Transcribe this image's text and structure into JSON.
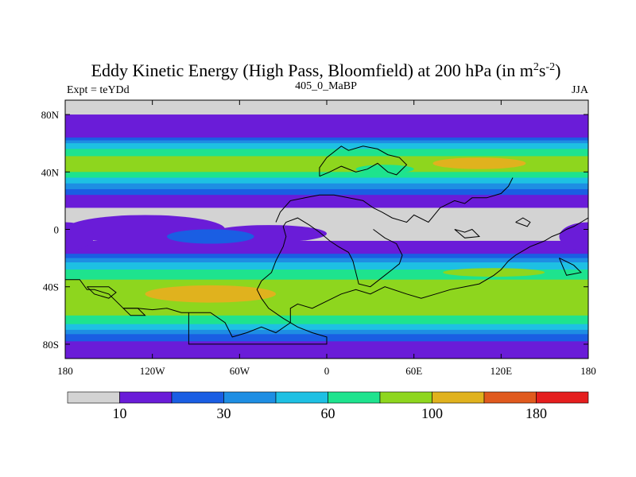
{
  "chart_data": {
    "type": "heatmap",
    "title_main": "Eddy Kinetic Energy (High Pass, Bloomfield) at 200 hPa (in m",
    "title_sup1": "2",
    "title_mid": "s",
    "title_sup2": "-2",
    "title_end": ")",
    "left_label": "Expt = teYDd",
    "center_label": "405_0_MaBP",
    "right_label": "JJA",
    "xlim": [
      -180,
      180
    ],
    "ylim": [
      -90,
      90
    ],
    "x_ticks": [
      {
        "value": -180,
        "label": "180"
      },
      {
        "value": -120,
        "label": "120W"
      },
      {
        "value": -60,
        "label": "60W"
      },
      {
        "value": 0,
        "label": "0"
      },
      {
        "value": 60,
        "label": "60E"
      },
      {
        "value": 120,
        "label": "120E"
      },
      {
        "value": 180,
        "label": "180"
      }
    ],
    "y_ticks": [
      {
        "value": 80,
        "label": "80N"
      },
      {
        "value": 40,
        "label": "40N"
      },
      {
        "value": 0,
        "label": "0"
      },
      {
        "value": -40,
        "label": "40S"
      },
      {
        "value": -80,
        "label": "80S"
      }
    ],
    "colorbar": {
      "colors": [
        "#d3d3d3",
        "#6a1cd8",
        "#1a5ee3",
        "#1e8ee3",
        "#1ec0e3",
        "#1ee38e",
        "#8ed61e",
        "#e0b21e",
        "#e05a1e",
        "#e51e1e"
      ],
      "tick_labels": [
        {
          "boundary": 1,
          "label": "10"
        },
        {
          "boundary": 3,
          "label": "30"
        },
        {
          "boundary": 5,
          "label": "60"
        },
        {
          "boundary": 7,
          "label": "100"
        },
        {
          "boundary": 9,
          "label": "180"
        }
      ]
    },
    "zonal_levels": [
      {
        "lat": 90,
        "level": 0
      },
      {
        "lat": 82,
        "level": 0
      },
      {
        "lat": 80,
        "level": 1
      },
      {
        "lat": 66,
        "level": 1
      },
      {
        "lat": 64,
        "level": 2
      },
      {
        "lat": 62,
        "level": 3
      },
      {
        "lat": 60,
        "level": 4
      },
      {
        "lat": 56,
        "level": 5
      },
      {
        "lat": 51,
        "level": 6
      },
      {
        "lat": 44,
        "level": 6
      },
      {
        "lat": 40,
        "level": 5
      },
      {
        "lat": 36,
        "level": 4
      },
      {
        "lat": 32,
        "level": 3
      },
      {
        "lat": 28,
        "level": 2
      },
      {
        "lat": 24,
        "level": 1
      },
      {
        "lat": 18,
        "level": 1
      },
      {
        "lat": 15,
        "level": 0
      },
      {
        "lat": -5,
        "level": 0
      },
      {
        "lat": -8,
        "level": 1
      },
      {
        "lat": -14,
        "level": 1
      },
      {
        "lat": -17,
        "level": 2
      },
      {
        "lat": -20,
        "level": 3
      },
      {
        "lat": -23,
        "level": 4
      },
      {
        "lat": -28,
        "level": 5
      },
      {
        "lat": -35,
        "level": 6
      },
      {
        "lat": -52,
        "level": 6
      },
      {
        "lat": -60,
        "level": 5
      },
      {
        "lat": -66,
        "level": 4
      },
      {
        "lat": -70,
        "level": 3
      },
      {
        "lat": -73,
        "level": 2
      },
      {
        "lat": -78,
        "level": 1
      },
      {
        "lat": -82,
        "level": 1
      },
      {
        "lat": -90,
        "level": 1
      }
    ],
    "patches": [
      {
        "level": 7,
        "lon": 105,
        "lat": 46,
        "rlon": 32,
        "rlat": 4
      },
      {
        "level": 7,
        "lon": -80,
        "lat": -45,
        "rlon": 45,
        "rlat": 6
      },
      {
        "level": 6,
        "lon": -20,
        "lat": 47,
        "rlon": 18,
        "rlat": 3
      },
      {
        "level": 5,
        "lon": 40,
        "lat": 42,
        "rlon": 20,
        "rlat": 3
      },
      {
        "level": 6,
        "lon": 115,
        "lat": -30,
        "rlon": 35,
        "rlat": 3
      },
      {
        "level": 1,
        "lon": -125,
        "lat": 0,
        "rlon": 55,
        "rlat": 10
      },
      {
        "level": 1,
        "lon": -40,
        "lat": -3,
        "rlon": 40,
        "rlat": 6
      },
      {
        "level": 2,
        "lon": -80,
        "lat": -5,
        "rlon": 30,
        "rlat": 5
      },
      {
        "level": 1,
        "lon": 180,
        "lat": -5,
        "rlon": 20,
        "rlat": 10
      },
      {
        "level": 1,
        "lon": -180,
        "lat": -5,
        "rlon": 20,
        "rlat": 10
      }
    ],
    "coastlines": [
      [
        [
          -180,
          -35
        ],
        [
          -170,
          -35
        ],
        [
          -165,
          -42
        ],
        [
          -160,
          -42
        ],
        [
          -150,
          -45
        ],
        [
          -145,
          -50
        ],
        [
          -140,
          -55
        ],
        [
          -130,
          -55
        ],
        [
          -120,
          -56
        ],
        [
          -110,
          -55
        ],
        [
          -100,
          -58
        ],
        [
          -80,
          -58
        ],
        [
          -70,
          -65
        ],
        [
          -65,
          -75
        ],
        [
          -55,
          -72
        ],
        [
          -45,
          -68
        ],
        [
          -35,
          -72
        ],
        [
          -25,
          -65
        ],
        [
          -25,
          -55
        ],
        [
          -20,
          -52
        ],
        [
          -10,
          -55
        ],
        [
          0,
          -50
        ],
        [
          10,
          -45
        ],
        [
          20,
          -42
        ],
        [
          30,
          -45
        ],
        [
          40,
          -40
        ],
        [
          55,
          -45
        ],
        [
          65,
          -48
        ],
        [
          75,
          -45
        ],
        [
          85,
          -42
        ],
        [
          95,
          -40
        ],
        [
          105,
          -38
        ],
        [
          115,
          -32
        ],
        [
          120,
          -28
        ],
        [
          125,
          -22
        ],
        [
          130,
          -18
        ],
        [
          135,
          -15
        ],
        [
          140,
          -12
        ],
        [
          145,
          -10
        ],
        [
          150,
          -8
        ],
        [
          155,
          -5
        ],
        [
          160,
          -3
        ],
        [
          165,
          0
        ],
        [
          170,
          2
        ],
        [
          175,
          5
        ],
        [
          180,
          8
        ]
      ],
      [
        [
          -95,
          -58
        ],
        [
          -95,
          -80
        ],
        [
          0,
          -80
        ],
        [
          0,
          -75
        ],
        [
          -10,
          -72
        ],
        [
          -20,
          -68
        ],
        [
          -30,
          -62
        ],
        [
          -40,
          -55
        ],
        [
          -45,
          -48
        ],
        [
          -48,
          -42
        ],
        [
          -45,
          -36
        ],
        [
          -38,
          -30
        ],
        [
          -35,
          -22
        ],
        [
          -30,
          -12
        ],
        [
          -28,
          -5
        ],
        [
          -30,
          2
        ],
        [
          -28,
          5
        ],
        [
          -20,
          8
        ],
        [
          -12,
          3
        ],
        [
          -5,
          -2
        ],
        [
          2,
          -8
        ],
        [
          8,
          -12
        ],
        [
          15,
          -16
        ],
        [
          18,
          -22
        ],
        [
          20,
          -30
        ],
        [
          22,
          -38
        ],
        [
          30,
          -40
        ],
        [
          40,
          -32
        ],
        [
          45,
          -28
        ],
        [
          50,
          -24
        ],
        [
          52,
          -18
        ],
        [
          48,
          -10
        ],
        [
          40,
          -6
        ],
        [
          32,
          0
        ]
      ],
      [
        [
          -35,
          5
        ],
        [
          -32,
          12
        ],
        [
          -25,
          20
        ],
        [
          -15,
          22
        ],
        [
          -5,
          24
        ],
        [
          5,
          24
        ],
        [
          15,
          22
        ],
        [
          25,
          20
        ],
        [
          32,
          15
        ],
        [
          38,
          12
        ],
        [
          45,
          8
        ],
        [
          55,
          5
        ],
        [
          60,
          10
        ],
        [
          70,
          5
        ],
        [
          78,
          15
        ],
        [
          88,
          20
        ],
        [
          95,
          18
        ],
        [
          100,
          22
        ],
        [
          110,
          22
        ],
        [
          120,
          25
        ],
        [
          125,
          30
        ],
        [
          128,
          36
        ]
      ],
      [
        [
          -5,
          37
        ],
        [
          2,
          40
        ],
        [
          10,
          44
        ],
        [
          20,
          40
        ],
        [
          28,
          42
        ],
        [
          35,
          46
        ],
        [
          42,
          40
        ],
        [
          48,
          38
        ],
        [
          55,
          45
        ],
        [
          50,
          50
        ],
        [
          42,
          52
        ],
        [
          35,
          56
        ],
        [
          25,
          58
        ],
        [
          15,
          55
        ],
        [
          10,
          58
        ],
        [
          0,
          50
        ],
        [
          -5,
          43
        ],
        [
          -5,
          37
        ]
      ],
      [
        [
          88,
          0
        ],
        [
          95,
          -2
        ],
        [
          100,
          0
        ],
        [
          105,
          -5
        ],
        [
          95,
          -6
        ],
        [
          88,
          0
        ]
      ],
      [
        [
          130,
          5
        ],
        [
          135,
          8
        ],
        [
          140,
          5
        ],
        [
          138,
          2
        ],
        [
          130,
          5
        ]
      ],
      [
        [
          160,
          -20
        ],
        [
          170,
          -25
        ],
        [
          175,
          -30
        ],
        [
          165,
          -32
        ],
        [
          160,
          -20
        ]
      ],
      [
        [
          -165,
          -40
        ],
        [
          -160,
          -45
        ],
        [
          -150,
          -48
        ],
        [
          -145,
          -44
        ],
        [
          -150,
          -40
        ],
        [
          -165,
          -40
        ]
      ],
      [
        [
          -140,
          -55
        ],
        [
          -135,
          -60
        ],
        [
          -125,
          -60
        ],
        [
          -130,
          -55
        ],
        [
          -140,
          -55
        ]
      ]
    ]
  }
}
